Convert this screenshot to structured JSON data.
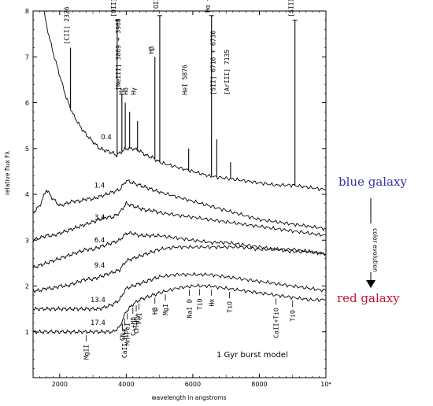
{
  "chart_data": {
    "type": "line",
    "title": "",
    "xlabel": "wavelength in angstroms",
    "ylabel": "relative flux Fλ",
    "xlim": [
      1200,
      10000
    ],
    "ylim": [
      0,
      8
    ],
    "x_ticks": [
      {
        "value": 2000,
        "label": "2000"
      },
      {
        "value": 4000,
        "label": "4000"
      },
      {
        "value": 6000,
        "label": "6000"
      },
      {
        "value": 8000,
        "label": "8000"
      },
      {
        "value": 10000,
        "label": "10⁴"
      }
    ],
    "y_ticks": [
      {
        "value": 1,
        "label": "1"
      },
      {
        "value": 2,
        "label": "2"
      },
      {
        "value": 3,
        "label": "3"
      },
      {
        "value": 4,
        "label": "4"
      },
      {
        "value": 5,
        "label": "5"
      },
      {
        "value": 6,
        "label": "6"
      },
      {
        "value": 7,
        "label": "7"
      },
      {
        "value": 8,
        "label": "8"
      }
    ],
    "model_label": "1 Gyr burst model",
    "series": [
      {
        "name": "0.4",
        "label_x": 3400,
        "label_y": 5.2,
        "x": [
          1200,
          1400,
          1600,
          1800,
          2000,
          2200,
          2400,
          2600,
          2800,
          3000,
          3200,
          3400,
          3600,
          3700,
          3800,
          3900,
          4000,
          4200,
          4400,
          4600,
          4800,
          5000,
          5500,
          6000,
          6500,
          7000,
          7500,
          8000,
          8500,
          9000,
          9500,
          10000
        ],
        "y": [
          9.5,
          8.5,
          7.7,
          7.1,
          6.6,
          6.1,
          5.75,
          5.5,
          5.3,
          5.15,
          5.0,
          4.95,
          4.9,
          4.85,
          4.9,
          4.95,
          5.0,
          5.0,
          4.95,
          4.85,
          4.8,
          4.7,
          4.6,
          4.5,
          4.4,
          4.35,
          4.3,
          4.25,
          4.2,
          4.2,
          4.15,
          4.1
        ]
      },
      {
        "name": "1.4",
        "label_x": 3200,
        "label_y": 4.15,
        "x": [
          1200,
          1400,
          1600,
          1800,
          2000,
          2200,
          2400,
          2600,
          2800,
          3000,
          3200,
          3400,
          3600,
          3800,
          4000,
          4200,
          4400,
          4600,
          4800,
          5000,
          5500,
          6000,
          6500,
          7000,
          7500,
          8000,
          8500,
          9000,
          9500,
          10000
        ],
        "y": [
          3.6,
          3.75,
          4.1,
          3.9,
          3.75,
          3.8,
          3.85,
          3.85,
          3.9,
          3.9,
          3.95,
          4.0,
          4.05,
          4.1,
          4.3,
          4.25,
          4.2,
          4.15,
          4.1,
          4.05,
          3.95,
          3.85,
          3.75,
          3.65,
          3.55,
          3.45,
          3.4,
          3.35,
          3.3,
          3.25
        ]
      },
      {
        "name": "3.4",
        "label_x": 3200,
        "label_y": 3.45,
        "x": [
          1200,
          1400,
          1600,
          1800,
          2000,
          2200,
          2400,
          2600,
          2800,
          3000,
          3200,
          3400,
          3600,
          3800,
          4000,
          4200,
          4400,
          4600,
          4800,
          5000,
          5500,
          6000,
          6500,
          7000,
          7500,
          8000,
          8500,
          9000,
          9500,
          10000
        ],
        "y": [
          3.0,
          3.05,
          3.1,
          3.1,
          3.15,
          3.2,
          3.25,
          3.3,
          3.35,
          3.4,
          3.45,
          3.5,
          3.5,
          3.6,
          3.8,
          3.75,
          3.7,
          3.65,
          3.65,
          3.6,
          3.55,
          3.5,
          3.45,
          3.4,
          3.35,
          3.3,
          3.25,
          3.2,
          3.15,
          3.1
        ]
      },
      {
        "name": "6.4",
        "label_x": 3200,
        "label_y": 2.95,
        "x": [
          1200,
          1400,
          1600,
          1800,
          2000,
          2200,
          2400,
          2600,
          2800,
          3000,
          3200,
          3400,
          3600,
          3800,
          4000,
          4200,
          4400,
          4600,
          4800,
          5000,
          5500,
          6000,
          6500,
          7000,
          7500,
          8000,
          8500,
          9000,
          9500,
          10000
        ],
        "y": [
          2.4,
          2.45,
          2.5,
          2.55,
          2.6,
          2.65,
          2.7,
          2.75,
          2.8,
          2.8,
          2.85,
          2.9,
          2.95,
          3.0,
          3.15,
          3.15,
          3.1,
          3.1,
          3.1,
          3.1,
          3.05,
          3.0,
          2.95,
          2.95,
          2.9,
          2.85,
          2.8,
          2.8,
          2.75,
          2.7
        ]
      },
      {
        "name": "9.4",
        "label_x": 3200,
        "label_y": 2.4,
        "x": [
          1200,
          1400,
          1600,
          1800,
          2000,
          2200,
          2400,
          2600,
          2800,
          3000,
          3200,
          3400,
          3600,
          3800,
          4000,
          4200,
          4400,
          4600,
          4800,
          5000,
          5500,
          6000,
          6500,
          7000,
          7500,
          8000,
          8500,
          9000,
          9500,
          10000
        ],
        "y": [
          1.9,
          1.9,
          1.95,
          1.95,
          2.0,
          2.0,
          2.05,
          2.1,
          2.15,
          2.15,
          2.2,
          2.25,
          2.3,
          2.35,
          2.55,
          2.6,
          2.65,
          2.7,
          2.75,
          2.8,
          2.85,
          2.85,
          2.85,
          2.85,
          2.85,
          2.8,
          2.8,
          2.75,
          2.75,
          2.7
        ]
      },
      {
        "name": "13.4",
        "label_x": 3150,
        "label_y": 1.65,
        "x": [
          1200,
          1400,
          1600,
          1800,
          2000,
          2200,
          2400,
          2600,
          2800,
          3000,
          3200,
          3400,
          3600,
          3800,
          4000,
          4200,
          4400,
          4600,
          4800,
          5000,
          5500,
          6000,
          6500,
          7000,
          7500,
          8000,
          8500,
          9000,
          9500,
          10000
        ],
        "y": [
          1.5,
          1.5,
          1.5,
          1.5,
          1.5,
          1.5,
          1.5,
          1.5,
          1.5,
          1.5,
          1.5,
          1.55,
          1.6,
          1.7,
          1.95,
          2.0,
          2.05,
          2.1,
          2.15,
          2.2,
          2.25,
          2.25,
          2.25,
          2.2,
          2.15,
          2.1,
          2.05,
          2.0,
          1.95,
          1.9
        ]
      },
      {
        "name": "17.4",
        "label_x": 3150,
        "label_y": 1.15,
        "x": [
          1200,
          1400,
          1600,
          1800,
          2000,
          2200,
          2400,
          2600,
          2800,
          3000,
          3200,
          3400,
          3600,
          3800,
          4000,
          4200,
          4400,
          4600,
          4800,
          5000,
          5500,
          6000,
          6500,
          7000,
          7500,
          8000,
          8500,
          9000,
          9500,
          10000
        ],
        "y": [
          1.0,
          1.0,
          1.0,
          1.0,
          1.0,
          1.0,
          1.0,
          1.0,
          1.0,
          1.0,
          1.0,
          1.0,
          1.0,
          1.1,
          1.45,
          1.6,
          1.7,
          1.75,
          1.8,
          1.85,
          1.95,
          2.0,
          2.0,
          1.95,
          1.9,
          1.85,
          1.8,
          1.75,
          1.7,
          1.7
        ]
      }
    ],
    "emission_lines": [
      {
        "label": "[CII] 2326",
        "x": 2326,
        "peak": 7.2
      },
      {
        "label": "[OII] 3727",
        "x": 3727,
        "peak": 7.8
      },
      {
        "label": "[NeIII] 3869 + 3968",
        "x": 3869,
        "peak": 6.2
      },
      {
        "label": "Hε",
        "x": 3970,
        "peak": 6.0
      },
      {
        "label": "Hδ",
        "x": 4102,
        "peak": 5.8
      },
      {
        "label": "Hγ",
        "x": 4340,
        "peak": 5.6
      },
      {
        "label": "Hβ",
        "x": 4861,
        "peak": 7.0
      },
      {
        "label": "[OIII] 5007",
        "x": 5007,
        "peak": 7.9
      },
      {
        "label": "HeI 5876",
        "x": 5876,
        "peak": 5.0
      },
      {
        "label": "Hα + [NII] 6548 + 6583",
        "x": 6563,
        "peak": 7.9
      },
      {
        "label": "[SII] 6716 + 6730",
        "x": 6720,
        "peak": 5.2
      },
      {
        "label": "[ArIII] 7135",
        "x": 7135,
        "peak": 4.7
      },
      {
        "label": "[SIII] 9069 + 9532",
        "x": 9069,
        "peak": 7.8
      }
    ],
    "absorption_lines": [
      {
        "label": "MgII",
        "x": 2800
      },
      {
        "label": "CN",
        "x": 3883
      },
      {
        "label": "CaII H+K",
        "x": 3950
      },
      {
        "label": "Mn+FeI",
        "x": 4030
      },
      {
        "label": "CH+Hγ",
        "x": 4300
      },
      {
        "label": "FeI",
        "x": 4383
      },
      {
        "label": "C₂+Hδ",
        "x": 4200
      },
      {
        "label": "Hβ",
        "x": 4861
      },
      {
        "label": "MgI",
        "x": 5175
      },
      {
        "label": "NaI D",
        "x": 5893
      },
      {
        "label": "TiO",
        "x": 6200
      },
      {
        "label": "Hα",
        "x": 6563
      },
      {
        "label": "TiO",
        "x": 7100
      },
      {
        "label": "CaII+TiO",
        "x": 8500
      },
      {
        "label": "TiO",
        "x": 9000
      }
    ]
  },
  "annotations": {
    "blue_galaxy": "blue galaxy",
    "red_galaxy": "red galaxy",
    "color_evolution": "color evolution",
    "blue_color": "#3333aa",
    "red_color": "#cc1133"
  }
}
